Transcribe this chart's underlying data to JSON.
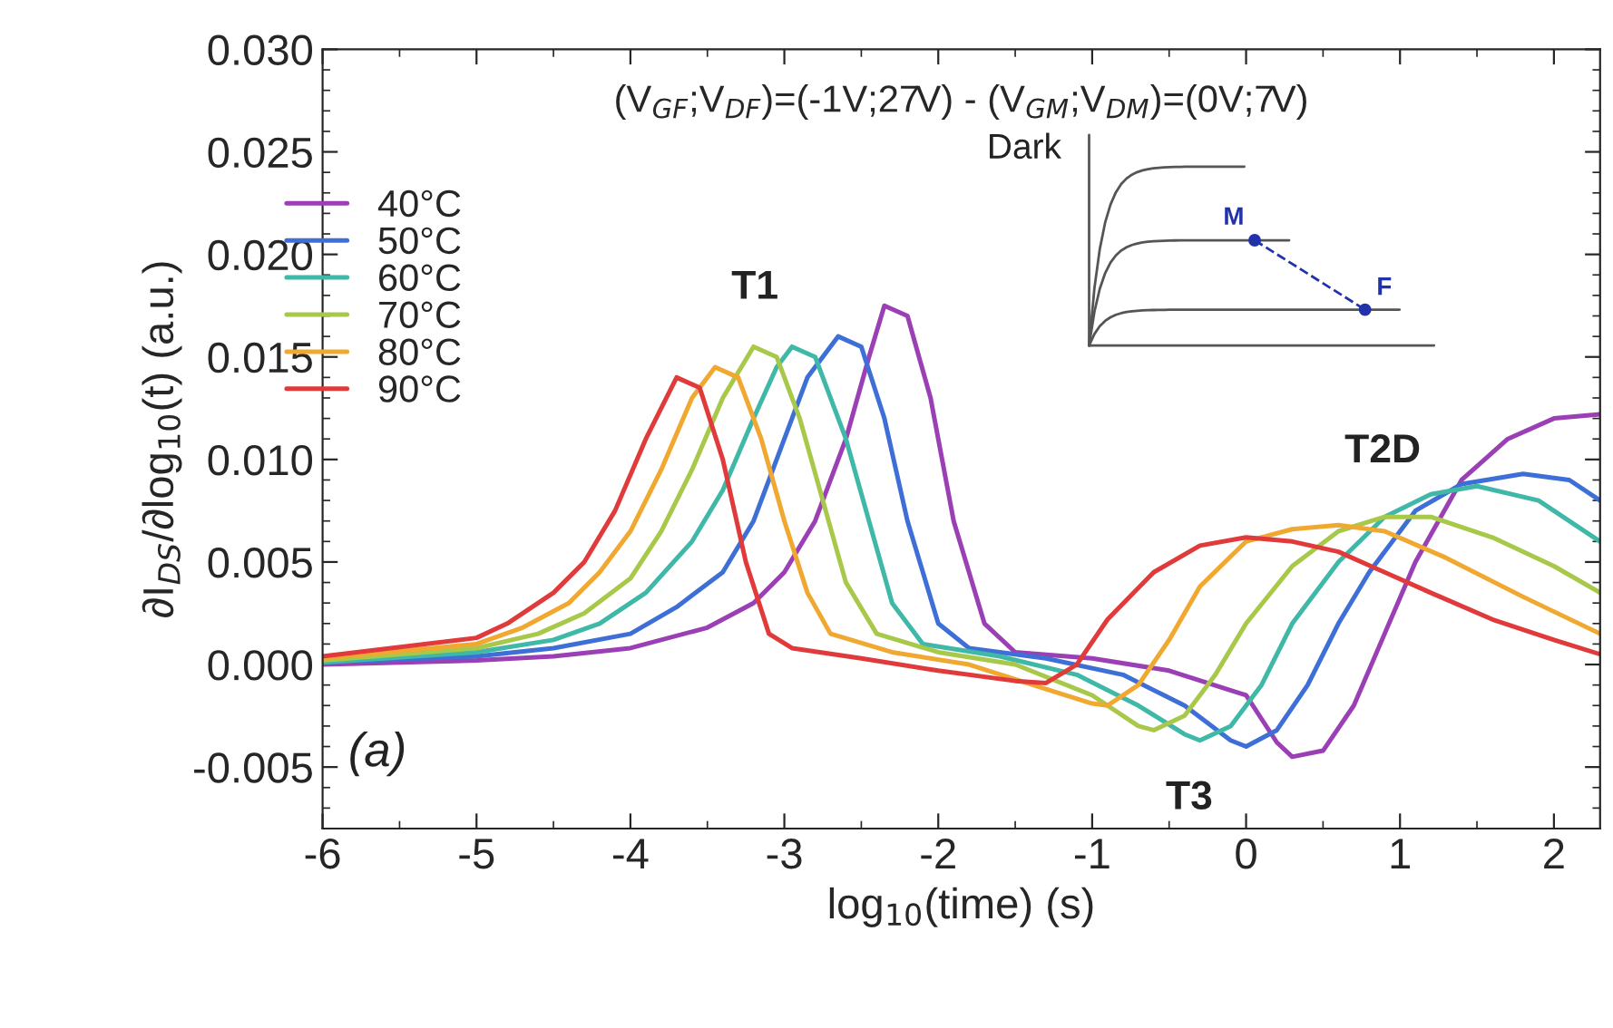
{
  "chart_data": {
    "type": "line",
    "title": "(V$_{GF}$;V$_{DF}$)=(-1V;27V) - (V$_{GM}$;V$_{DM}$)=(0V;7V)",
    "xlabel": "log$_{10}$(time) (s)",
    "ylabel": "∂I$_{DS}$/∂log$_{10}$(t) (a.u.)",
    "xlim": [
      -6,
      2.3
    ],
    "ylim": [
      -0.008,
      0.03
    ],
    "xticks": [
      -6,
      -5,
      -4,
      -3,
      -2,
      -1,
      0,
      1,
      2
    ],
    "yticks": [
      {
        "value": -0.005,
        "label": "-0.005"
      },
      {
        "value": 0,
        "label": "0.000"
      },
      {
        "value": 0.005,
        "label": "0.005"
      },
      {
        "value": 0.01,
        "label": "0.010"
      },
      {
        "value": 0.015,
        "label": "0.015"
      },
      {
        "value": 0.02,
        "label": "0.020"
      },
      {
        "value": 0.025,
        "label": "0.025"
      },
      {
        "value": 0.03,
        "label": "0.030"
      }
    ],
    "legend": "top left",
    "grid": false,
    "marker": "none",
    "line_style": "solid",
    "annotations": [
      "T1",
      "T2D",
      "T3",
      "(a)",
      "Dark",
      "M",
      "F"
    ],
    "series": [
      {
        "name": "40°C",
        "color": "#9b3fb5",
        "x": [
          -6,
          -5,
          -4.5,
          -4,
          -3.5,
          -3.2,
          -3,
          -2.8,
          -2.6,
          -2.45,
          -2.35,
          -2.2,
          -2.05,
          -1.9,
          -1.7,
          -1.5,
          -1,
          -0.5,
          0,
          0.2,
          0.3,
          0.5,
          0.7,
          0.9,
          1.1,
          1.4,
          1.7,
          2,
          2.3
        ],
        "values": [
          0,
          0.0002,
          0.0004,
          0.0008,
          0.0018,
          0.003,
          0.0045,
          0.007,
          0.011,
          0.015,
          0.0175,
          0.017,
          0.013,
          0.007,
          0.002,
          0.0006,
          0.0003,
          -0.0003,
          -0.0015,
          -0.0038,
          -0.0045,
          -0.0042,
          -0.002,
          0.0015,
          0.005,
          0.009,
          0.011,
          0.012,
          0.0122
        ]
      },
      {
        "name": "50°C",
        "color": "#3d6fd6",
        "x": [
          -6,
          -5,
          -4.5,
          -4,
          -3.7,
          -3.4,
          -3.2,
          -3,
          -2.85,
          -2.65,
          -2.5,
          -2.35,
          -2.2,
          -2,
          -1.8,
          -1.3,
          -0.8,
          -0.4,
          -0.1,
          0,
          0.2,
          0.4,
          0.6,
          0.8,
          1.1,
          1.4,
          1.8,
          2.1,
          2.3
        ],
        "values": [
          0.0001,
          0.0004,
          0.0008,
          0.0015,
          0.0028,
          0.0045,
          0.007,
          0.011,
          0.014,
          0.016,
          0.0155,
          0.012,
          0.007,
          0.002,
          0.0008,
          0.0003,
          -0.0005,
          -0.002,
          -0.0037,
          -0.004,
          -0.0032,
          -0.001,
          0.002,
          0.0045,
          0.0075,
          0.0088,
          0.0093,
          0.009,
          0.008
        ]
      },
      {
        "name": "60°C",
        "color": "#3fb8a8",
        "x": [
          -6,
          -5,
          -4.5,
          -4.2,
          -3.9,
          -3.6,
          -3.4,
          -3.2,
          -3.05,
          -2.95,
          -2.8,
          -2.6,
          -2.45,
          -2.3,
          -2.1,
          -1.6,
          -1.1,
          -0.7,
          -0.4,
          -0.3,
          -0.1,
          0.1,
          0.3,
          0.6,
          0.9,
          1.2,
          1.5,
          1.9,
          2.3
        ],
        "values": [
          0.0001,
          0.0006,
          0.0012,
          0.002,
          0.0035,
          0.006,
          0.0085,
          0.012,
          0.0145,
          0.0155,
          0.015,
          0.011,
          0.007,
          0.003,
          0.001,
          0.0004,
          -0.0005,
          -0.002,
          -0.0034,
          -0.0037,
          -0.003,
          -0.001,
          0.002,
          0.005,
          0.0072,
          0.0083,
          0.0087,
          0.008,
          0.006
        ]
      },
      {
        "name": "70°C",
        "color": "#a8c84a",
        "x": [
          -6,
          -5,
          -4.6,
          -4.3,
          -4,
          -3.8,
          -3.6,
          -3.4,
          -3.2,
          -3.05,
          -2.9,
          -2.75,
          -2.6,
          -2.4,
          -2,
          -1.5,
          -1,
          -0.7,
          -0.6,
          -0.4,
          -0.2,
          0,
          0.3,
          0.6,
          0.9,
          1.2,
          1.6,
          2,
          2.3
        ],
        "values": [
          0.0002,
          0.0008,
          0.0015,
          0.0025,
          0.0042,
          0.0065,
          0.0095,
          0.013,
          0.0155,
          0.015,
          0.012,
          0.008,
          0.004,
          0.0015,
          0.0006,
          0,
          -0.0015,
          -0.003,
          -0.0032,
          -0.0025,
          -0.0005,
          0.002,
          0.0048,
          0.0065,
          0.0072,
          0.0072,
          0.0062,
          0.0048,
          0.0035
        ]
      },
      {
        "name": "80°C",
        "color": "#f0a830",
        "x": [
          -6,
          -5,
          -4.7,
          -4.4,
          -4.2,
          -4,
          -3.8,
          -3.6,
          -3.45,
          -3.3,
          -3.15,
          -3,
          -2.85,
          -2.7,
          -2.3,
          -1.8,
          -1.3,
          -1,
          -0.9,
          -0.7,
          -0.5,
          -0.3,
          0,
          0.3,
          0.6,
          0.9,
          1.3,
          1.8,
          2.3
        ],
        "values": [
          0.0003,
          0.001,
          0.0018,
          0.003,
          0.0045,
          0.0065,
          0.0095,
          0.013,
          0.0145,
          0.014,
          0.011,
          0.007,
          0.0035,
          0.0015,
          0.0006,
          0,
          -0.0012,
          -0.0019,
          -0.002,
          -0.001,
          0.0012,
          0.0038,
          0.006,
          0.0066,
          0.0068,
          0.0065,
          0.0052,
          0.0033,
          0.0015
        ]
      },
      {
        "name": "90°C",
        "color": "#e03a3a",
        "x": [
          -6,
          -5,
          -4.8,
          -4.5,
          -4.3,
          -4.1,
          -3.9,
          -3.7,
          -3.55,
          -3.4,
          -3.25,
          -3.1,
          -2.95,
          -2.5,
          -2,
          -1.5,
          -1.3,
          -1.1,
          -0.9,
          -0.6,
          -0.3,
          0,
          0.3,
          0.6,
          0.9,
          1.2,
          1.6,
          2,
          2.3
        ],
        "values": [
          0.0004,
          0.0013,
          0.002,
          0.0035,
          0.005,
          0.0075,
          0.011,
          0.014,
          0.0135,
          0.01,
          0.005,
          0.0015,
          0.0008,
          0.0003,
          -0.0003,
          -0.0008,
          -0.0009,
          0,
          0.0022,
          0.0045,
          0.0058,
          0.0062,
          0.006,
          0.0055,
          0.0045,
          0.0035,
          0.0022,
          0.0012,
          0.0005
        ]
      }
    ]
  }
}
